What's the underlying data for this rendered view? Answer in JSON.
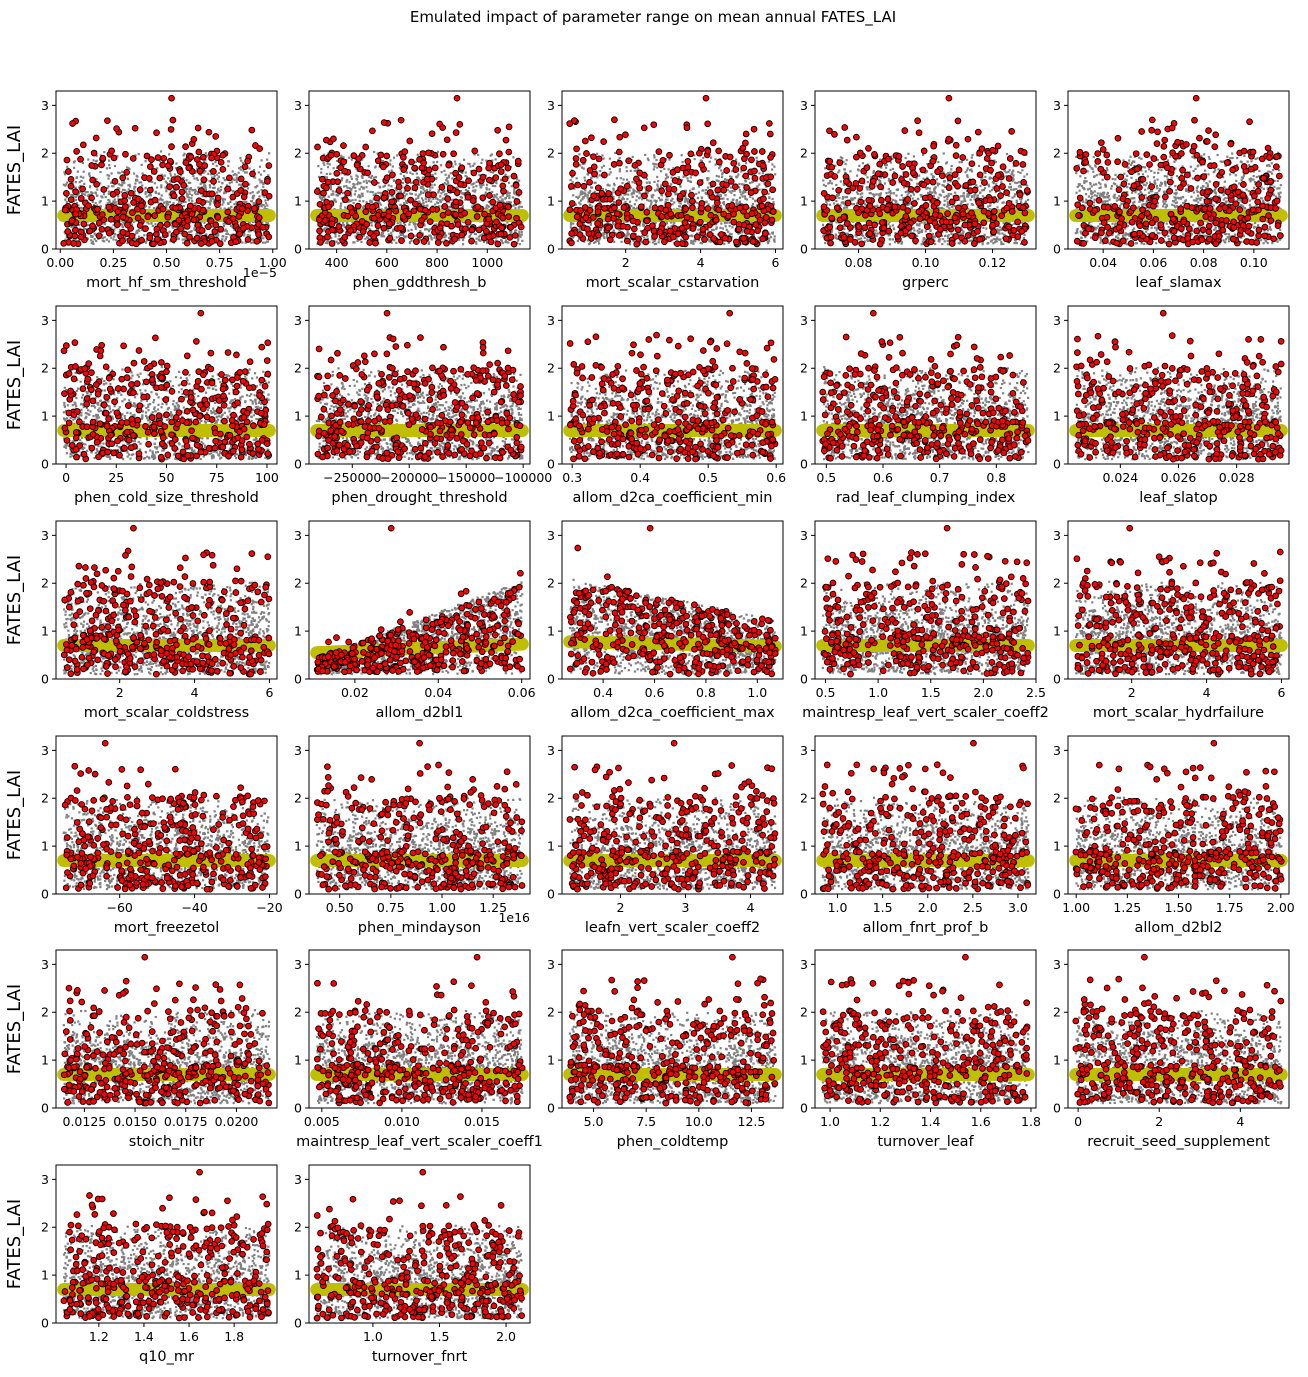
{
  "title": "Emulated impact of parameter range on mean annual FATES_LAI",
  "colors": {
    "emulator_cloud": "#808080",
    "ensemble_points": "#ff0000",
    "ensemble_edge": "#000000",
    "mean_band": "#bfbf00"
  },
  "chart_data": {
    "type": "scatter",
    "layout": "grid 5 columns x 6 rows",
    "ylabel": "FATES_LAI",
    "ylim": [
      0,
      3.3
    ],
    "yticks": [
      0,
      1,
      2,
      3
    ],
    "grid": false,
    "legend": "none",
    "series_styles": {
      "emulator_cloud": "grey dense points, y roughly 0.1-2.0 across full x range",
      "ensemble_points": "red markers with black edge, y roughly 0.1-3.2",
      "mean_band": "yellow-green band at y ≈ 0.7"
    },
    "panels": [
      {
        "xlabel": "mort_hf_sm_threshold",
        "xlim": [
          -0.02,
          1.02
        ],
        "xticks": [
          0.0,
          0.25,
          0.5,
          0.75,
          1.0
        ],
        "xtick_labels": [
          "0.00",
          "0.25",
          "0.50",
          "0.75",
          "1.00"
        ],
        "offset": "1e−5",
        "trend": "flat"
      },
      {
        "xlabel": "phen_gddthresh_b",
        "xlim": [
          290,
          1170
        ],
        "xticks": [
          400,
          600,
          800,
          1000
        ],
        "xtick_labels": [
          "400",
          "600",
          "800",
          "1000"
        ],
        "trend": "flat"
      },
      {
        "xlabel": "mort_scalar_cstarvation",
        "xlim": [
          0.3,
          6.2
        ],
        "xticks": [
          2,
          4,
          6
        ],
        "xtick_labels": [
          "2",
          "4",
          "6"
        ],
        "trend": "flat"
      },
      {
        "xlabel": "grperc",
        "xlim": [
          0.067,
          0.133
        ],
        "xticks": [
          0.08,
          0.1,
          0.12
        ],
        "xtick_labels": [
          "0.08",
          "0.10",
          "0.12"
        ],
        "trend": "flat"
      },
      {
        "xlabel": "leaf_slamax",
        "xlim": [
          0.026,
          0.114
        ],
        "xticks": [
          0.04,
          0.06,
          0.08,
          0.1
        ],
        "xtick_labels": [
          "0.04",
          "0.06",
          "0.08",
          "0.10"
        ],
        "trend": "flat"
      },
      {
        "xlabel": "phen_cold_size_threshold",
        "xlim": [
          -5,
          105
        ],
        "xticks": [
          0,
          25,
          50,
          75,
          100
        ],
        "xtick_labels": [
          "0",
          "25",
          "50",
          "75",
          "100"
        ],
        "trend": "flat"
      },
      {
        "xlabel": "phen_drought_threshold",
        "xlim": [
          -288000,
          -94000
        ],
        "xticks": [
          -250000,
          -200000,
          -150000,
          -100000
        ],
        "xtick_labels": [
          "−250000",
          "−200000",
          "−150000",
          "−100000"
        ],
        "trend": "flat"
      },
      {
        "xlabel": "allom_d2ca_coefficient_min",
        "xlim": [
          0.285,
          0.61
        ],
        "xticks": [
          0.3,
          0.4,
          0.5,
          0.6
        ],
        "xtick_labels": [
          "0.3",
          "0.4",
          "0.5",
          "0.6"
        ],
        "trend": "flat"
      },
      {
        "xlabel": "rad_leaf_clumping_index",
        "xlim": [
          0.48,
          0.87
        ],
        "xticks": [
          0.5,
          0.6,
          0.7,
          0.8
        ],
        "xtick_labels": [
          "0.5",
          "0.6",
          "0.7",
          "0.8"
        ],
        "trend": "flat"
      },
      {
        "xlabel": "leaf_slatop",
        "xlim": [
          0.0222,
          0.0298
        ],
        "xticks": [
          0.024,
          0.026,
          0.028
        ],
        "xtick_labels": [
          "0.024",
          "0.026",
          "0.028"
        ],
        "trend": "flat"
      },
      {
        "xlabel": "mort_scalar_coldstress",
        "xlim": [
          0.3,
          6.2
        ],
        "xticks": [
          2,
          4,
          6
        ],
        "xtick_labels": [
          "2",
          "4",
          "6"
        ],
        "trend": "flat"
      },
      {
        "xlabel": "allom_d2bl1",
        "xlim": [
          0.009,
          0.062
        ],
        "xticks": [
          0.02,
          0.04,
          0.06
        ],
        "xtick_labels": [
          "0.02",
          "0.04",
          "0.06"
        ],
        "trend": "increasing"
      },
      {
        "xlabel": "allom_d2ca_coefficient_max",
        "xlim": [
          0.24,
          1.1
        ],
        "xticks": [
          0.4,
          0.6,
          0.8,
          1.0
        ],
        "xtick_labels": [
          "0.4",
          "0.6",
          "0.8",
          "1.0"
        ],
        "trend": "decreasing"
      },
      {
        "xlabel": "maintresp_leaf_vert_scaler_coeff2",
        "xlim": [
          0.4,
          2.5
        ],
        "xticks": [
          0.5,
          1.0,
          1.5,
          2.0,
          2.5
        ],
        "xtick_labels": [
          "0.5",
          "1.0",
          "1.5",
          "2.0",
          "2.5"
        ],
        "trend": "flat"
      },
      {
        "xlabel": "mort_scalar_hydrfailure",
        "xlim": [
          0.3,
          6.2
        ],
        "xticks": [
          2,
          4,
          6
        ],
        "xtick_labels": [
          "2",
          "4",
          "6"
        ],
        "trend": "flat"
      },
      {
        "xlabel": "mort_freezetol",
        "xlim": [
          -77,
          -18
        ],
        "xticks": [
          -60,
          -40,
          -20
        ],
        "xtick_labels": [
          "−60",
          "−40",
          "−20"
        ],
        "trend": "flat"
      },
      {
        "xlabel": "phen_mindayson",
        "xlim": [
          0.35,
          1.43
        ],
        "xticks": [
          0.5,
          0.75,
          1.0,
          1.25
        ],
        "xtick_labels": [
          "0.50",
          "0.75",
          "1.00",
          "1.25"
        ],
        "offset": "1e16",
        "trend": "flat"
      },
      {
        "xlabel": "leafn_vert_scaler_coeff2",
        "xlim": [
          1.1,
          4.5
        ],
        "xticks": [
          2,
          3,
          4
        ],
        "xtick_labels": [
          "2",
          "3",
          "4"
        ],
        "trend": "flat"
      },
      {
        "xlabel": "allom_fnrt_prof_b",
        "xlim": [
          0.75,
          3.2
        ],
        "xticks": [
          1.0,
          1.5,
          2.0,
          2.5,
          3.0
        ],
        "xtick_labels": [
          "1.0",
          "1.5",
          "2.0",
          "2.5",
          "3.0"
        ],
        "trend": "flat"
      },
      {
        "xlabel": "allom_d2bl2",
        "xlim": [
          0.96,
          2.04
        ],
        "xticks": [
          1.0,
          1.25,
          1.5,
          1.75,
          2.0
        ],
        "xtick_labels": [
          "1.00",
          "1.25",
          "1.50",
          "1.75",
          "2.00"
        ],
        "trend": "flat"
      },
      {
        "xlabel": "stoich_nitr",
        "xlim": [
          0.0111,
          0.022
        ],
        "xticks": [
          0.0125,
          0.015,
          0.0175,
          0.02
        ],
        "xtick_labels": [
          "0.0125",
          "0.0150",
          "0.0175",
          "0.0200"
        ],
        "trend": "flat"
      },
      {
        "xlabel": "maintresp_leaf_vert_scaler_coeff1",
        "xlim": [
          0.0042,
          0.018
        ],
        "xticks": [
          0.005,
          0.01,
          0.015
        ],
        "xtick_labels": [
          "0.005",
          "0.010",
          "0.015"
        ],
        "trend": "flat"
      },
      {
        "xlabel": "phen_coldtemp",
        "xlim": [
          3.5,
          14
        ],
        "xticks": [
          5.0,
          7.5,
          10.0,
          12.5
        ],
        "xtick_labels": [
          "5.0",
          "7.5",
          "10.0",
          "12.5"
        ],
        "trend": "flat"
      },
      {
        "xlabel": "turnover_leaf",
        "xlim": [
          0.94,
          1.82
        ],
        "xticks": [
          1.0,
          1.2,
          1.4,
          1.6,
          1.8
        ],
        "xtick_labels": [
          "1.0",
          "1.2",
          "1.4",
          "1.6",
          "1.8"
        ],
        "trend": "flat"
      },
      {
        "xlabel": "recruit_seed_supplement",
        "xlim": [
          -0.25,
          5.2
        ],
        "xticks": [
          0,
          2,
          4
        ],
        "xtick_labels": [
          "0",
          "2",
          "4"
        ],
        "trend": "flat"
      },
      {
        "xlabel": "q10_mr",
        "xlim": [
          1.01,
          1.99
        ],
        "xticks": [
          1.2,
          1.4,
          1.6,
          1.8
        ],
        "xtick_labels": [
          "1.2",
          "1.4",
          "1.6",
          "1.8"
        ],
        "trend": "flat"
      },
      {
        "xlabel": "turnover_fnrt",
        "xlim": [
          0.52,
          2.18
        ],
        "xticks": [
          1.0,
          1.5,
          2.0
        ],
        "xtick_labels": [
          "1.0",
          "1.5",
          "2.0"
        ],
        "trend": "flat"
      }
    ]
  }
}
